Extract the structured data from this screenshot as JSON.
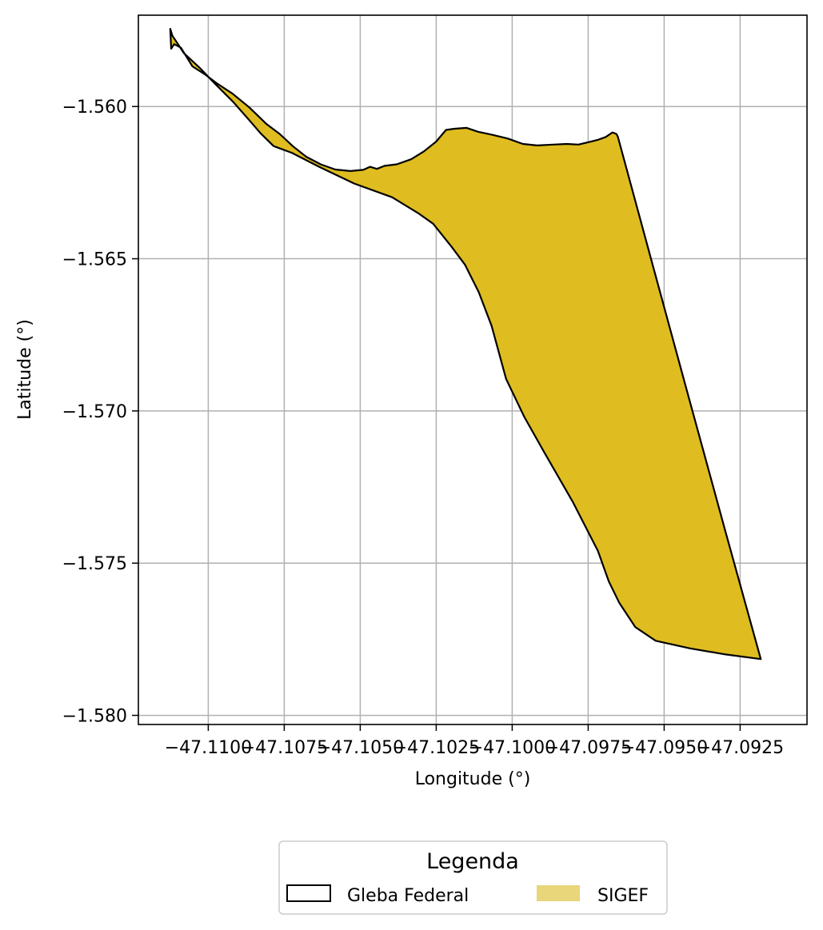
{
  "chart_data": {
    "type": "map",
    "xlabel": "Longitude (°)",
    "ylabel": "Latitude (°)",
    "x_ticks": [
      "−47.1100",
      "−47.1075",
      "−47.1050",
      "−47.1025",
      "−47.1000",
      "−47.0975",
      "−47.0950",
      "−47.0925"
    ],
    "x_tick_values": [
      -47.11,
      -47.1075,
      -47.105,
      -47.1025,
      -47.1,
      -47.0975,
      -47.095,
      -47.0925
    ],
    "y_ticks": [
      "−1.560",
      "−1.565",
      "−1.570",
      "−1.575",
      "−1.580"
    ],
    "y_tick_values": [
      -1.56,
      -1.565,
      -1.57,
      -1.575,
      -1.58
    ],
    "xlim": [
      -47.1123,
      -47.0903
    ],
    "ylim": [
      -1.5803,
      -1.557
    ],
    "grid": true,
    "legend": {
      "title": "Legenda",
      "placement": "bottom-center",
      "entries": [
        {
          "label": "Gleba Federal",
          "style": "outline"
        },
        {
          "label": "SIGEF",
          "style": "fill"
        }
      ]
    },
    "colors": {
      "gleba_outline": "#000000",
      "sigef_fill": "#dfbd20",
      "sigef_legend_fill": "#e9d67a",
      "grid": "#b0b0b0"
    },
    "polygon": [
      [
        -47.11122,
        -1.5581
      ],
      [
        -47.11112,
        -1.55795
      ],
      [
        -47.1109,
        -1.55807
      ],
      [
        -47.11052,
        -1.55868
      ],
      [
        -47.1101,
        -1.55895
      ],
      [
        -47.1097,
        -1.55925
      ],
      [
        -47.1092,
        -1.55958
      ],
      [
        -47.10865,
        -1.56003
      ],
      [
        -47.10808,
        -1.56058
      ],
      [
        -47.10765,
        -1.5609
      ],
      [
        -47.10722,
        -1.5613
      ],
      [
        -47.10678,
        -1.56165
      ],
      [
        -47.1063,
        -1.5619
      ],
      [
        -47.10582,
        -1.56207
      ],
      [
        -47.10532,
        -1.56212
      ],
      [
        -47.1049,
        -1.56208
      ],
      [
        -47.10468,
        -1.56198
      ],
      [
        -47.10445,
        -1.56205
      ],
      [
        -47.1042,
        -1.56195
      ],
      [
        -47.1038,
        -1.5619
      ],
      [
        -47.10332,
        -1.56173
      ],
      [
        -47.1029,
        -1.56147
      ],
      [
        -47.1025,
        -1.56115
      ],
      [
        -47.10218,
        -1.56077
      ],
      [
        -47.1019,
        -1.56073
      ],
      [
        -47.1015,
        -1.5607
      ],
      [
        -47.10112,
        -1.56083
      ],
      [
        -47.1007,
        -1.56092
      ],
      [
        -47.10015,
        -1.56105
      ],
      [
        -47.09965,
        -1.56123
      ],
      [
        -47.09918,
        -1.56128
      ],
      [
        -47.09865,
        -1.56125
      ],
      [
        -47.0982,
        -1.56123
      ],
      [
        -47.09782,
        -1.56125
      ],
      [
        -47.09748,
        -1.56117
      ],
      [
        -47.0972,
        -1.5611
      ],
      [
        -47.09692,
        -1.561
      ],
      [
        -47.0967,
        -1.56085
      ],
      [
        -47.09657,
        -1.5609
      ],
      [
        -47.09652,
        -1.561
      ],
      [
        -47.09538,
        -1.5652
      ],
      [
        -47.09418,
        -1.5696
      ],
      [
        -47.093,
        -1.5739
      ],
      [
        -47.09182,
        -1.57815
      ],
      [
        -47.09298,
        -1.578
      ],
      [
        -47.09415,
        -1.5778
      ],
      [
        -47.09528,
        -1.57755
      ],
      [
        -47.09595,
        -1.5771
      ],
      [
        -47.09648,
        -1.5763
      ],
      [
        -47.09682,
        -1.5756
      ],
      [
        -47.09718,
        -1.5746
      ],
      [
        -47.098,
        -1.573
      ],
      [
        -47.09895,
        -1.57135
      ],
      [
        -47.0996,
        -1.5702
      ],
      [
        -47.1002,
        -1.56895
      ],
      [
        -47.10068,
        -1.5672
      ],
      [
        -47.1011,
        -1.5661
      ],
      [
        -47.10155,
        -1.5652
      ],
      [
        -47.102,
        -1.5646
      ],
      [
        -47.1026,
        -1.56385
      ],
      [
        -47.1031,
        -1.5635
      ],
      [
        -47.10395,
        -1.56298
      ],
      [
        -47.1052,
        -1.56253
      ],
      [
        -47.10635,
        -1.56198
      ],
      [
        -47.10725,
        -1.56152
      ],
      [
        -47.10785,
        -1.5613
      ],
      [
        -47.10828,
        -1.56088
      ],
      [
        -47.10865,
        -1.56045
      ],
      [
        -47.10918,
        -1.55985
      ],
      [
        -47.10978,
        -1.55925
      ],
      [
        -47.11028,
        -1.55873
      ],
      [
        -47.1108,
        -1.55825
      ],
      [
        -47.11105,
        -1.55787
      ],
      [
        -47.11118,
        -1.55768
      ],
      [
        -47.11125,
        -1.55745
      ]
    ]
  }
}
